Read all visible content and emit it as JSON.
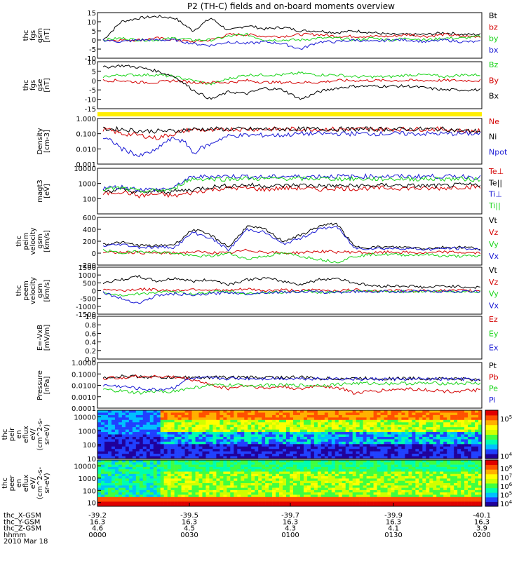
{
  "title": "P2 (TH-C) fields and on-board moments overview",
  "colors": {
    "black": "#000000",
    "red": "#d40000",
    "green": "#18d418",
    "blue": "#1818d4",
    "yellow": "#ffee00"
  },
  "chart_data": [
    {
      "type": "line",
      "ylabel": [
        "thc",
        "fgs",
        "gsm",
        "[nT]"
      ],
      "ylim": [
        -10,
        15
      ],
      "yticks": [
        "15",
        "10",
        "5",
        "0",
        "-5",
        "-10"
      ],
      "series": [
        {
          "name": "Bt",
          "color": "black",
          "values": [
            0,
            10,
            12,
            13,
            12,
            5,
            12,
            5,
            8,
            6,
            7,
            5,
            5,
            4,
            5,
            4,
            3,
            3,
            3,
            4,
            3,
            3
          ]
        },
        {
          "name": "bz",
          "color": "red",
          "values": [
            0,
            0,
            0,
            1,
            0,
            -1,
            0,
            3,
            3,
            2,
            2,
            3,
            3,
            2,
            2,
            2,
            2,
            3,
            2,
            3,
            2,
            2
          ]
        },
        {
          "name": "by",
          "color": "green",
          "values": [
            0,
            1,
            0,
            0,
            1,
            0,
            0,
            2,
            3,
            0,
            0,
            0,
            1,
            1,
            0,
            1,
            0,
            1,
            0,
            1,
            1,
            2
          ]
        },
        {
          "name": "bx",
          "color": "blue",
          "values": [
            0,
            -1,
            0,
            0,
            0,
            -2,
            -3,
            -1,
            -2,
            -1,
            -2,
            -5,
            -1,
            -1,
            0,
            -1,
            0,
            0,
            -1,
            0,
            -1,
            -1
          ]
        }
      ]
    },
    {
      "type": "line",
      "ylabel": [
        "thc",
        "fgs",
        "gse",
        "[nT]"
      ],
      "ylim": [
        -15,
        10
      ],
      "yticks": [
        "10",
        "5",
        "0",
        "-5",
        "-10",
        "-15"
      ],
      "series": [
        {
          "name": "Bz",
          "color": "green",
          "values": [
            2,
            3,
            3,
            3,
            2,
            0,
            -2,
            1,
            3,
            3,
            3,
            4,
            3,
            3,
            2,
            2,
            2,
            3,
            3,
            2,
            3,
            3
          ]
        },
        {
          "name": "By",
          "color": "red",
          "values": [
            0,
            0,
            -1,
            -1,
            0,
            -1,
            -1,
            -1,
            0,
            -1,
            -1,
            -1,
            -1,
            0,
            0,
            0,
            0,
            0,
            0,
            0,
            0,
            0
          ]
        },
        {
          "name": "Bx",
          "color": "black",
          "values": [
            7,
            8,
            7,
            5,
            2,
            -5,
            -10,
            -6,
            -7,
            -4,
            -5,
            -10,
            -6,
            -4,
            -3,
            -3,
            -3,
            -3,
            -4,
            -5,
            -5,
            -5
          ]
        }
      ]
    },
    {
      "type": "line",
      "ylabel": [
        "Density",
        "[cm-3]"
      ],
      "yscale": "log",
      "ylim": [
        0.001,
        1.0
      ],
      "yticks": [
        "1.000",
        "0.100",
        "0.010",
        "0.001"
      ],
      "series": [
        {
          "name": "Ne",
          "color": "red",
          "values": [
            0.2,
            0.1,
            0.08,
            0.05,
            0.1,
            0.2,
            0.15,
            0.2,
            0.2,
            0.2,
            0.2,
            0.2,
            0.2,
            0.2,
            0.2,
            0.2,
            0.2,
            0.2,
            0.2,
            0.2,
            0.15,
            0.15
          ]
        },
        {
          "name": "Ni",
          "color": "black",
          "values": [
            0.2,
            0.2,
            0.15,
            0.15,
            0.15,
            0.2,
            0.2,
            0.2,
            0.2,
            0.2,
            0.2,
            0.2,
            0.2,
            0.2,
            0.2,
            0.2,
            0.2,
            0.2,
            0.2,
            0.2,
            0.15,
            0.15
          ]
        },
        {
          "name": "Npot",
          "color": "blue",
          "values": [
            0.05,
            0.01,
            0.003,
            0.008,
            0.05,
            0.004,
            0.02,
            0.07,
            0.08,
            0.08,
            0.08,
            0.1,
            0.1,
            0.1,
            0.1,
            0.1,
            0.1,
            0.1,
            0.1,
            0.1,
            0.1,
            0.1
          ]
        }
      ]
    },
    {
      "type": "line",
      "ylabel": [
        "magt3",
        "[eV]"
      ],
      "yscale": "log",
      "ylim": [
        10,
        10000
      ],
      "yticks": [
        "10000",
        "1000",
        "100"
      ],
      "series": [
        {
          "name": "Te⊥",
          "color": "red",
          "values": [
            200,
            300,
            150,
            200,
            150,
            250,
            400,
            500,
            500,
            400,
            500,
            500,
            400,
            500,
            450,
            500,
            500,
            500,
            450,
            500,
            600,
            600
          ]
        },
        {
          "name": "Te||",
          "color": "black",
          "values": [
            300,
            400,
            250,
            300,
            300,
            400,
            600,
            700,
            800,
            700,
            700,
            800,
            700,
            700,
            700,
            700,
            800,
            700,
            700,
            700,
            800,
            800
          ]
        },
        {
          "name": "Ti⊥",
          "color": "blue",
          "values": [
            500,
            600,
            400,
            400,
            500,
            2500,
            3000,
            3000,
            3000,
            2500,
            3000,
            2800,
            3000,
            3000,
            2800,
            3000,
            3000,
            2800,
            3000,
            2800,
            3000,
            2500
          ]
        },
        {
          "name": "Ti||",
          "color": "green",
          "values": [
            400,
            500,
            300,
            350,
            400,
            2000,
            2000,
            2000,
            2200,
            2000,
            2200,
            2000,
            2200,
            2000,
            2000,
            2000,
            2000,
            2000,
            2000,
            2000,
            2000,
            1800
          ]
        }
      ]
    },
    {
      "type": "line",
      "ylabel": [
        "thc",
        "peim",
        "velocity",
        "gsm",
        "[km/s]"
      ],
      "ylim": [
        -200,
        600
      ],
      "yticks": [
        "600",
        "400",
        "200",
        "0",
        "-200"
      ],
      "series": [
        {
          "name": "Vt",
          "color": "black",
          "values": [
            150,
            180,
            130,
            120,
            150,
            400,
            300,
            100,
            450,
            400,
            200,
            300,
            450,
            500,
            100,
            100,
            100,
            100,
            80,
            100,
            100,
            80
          ]
        },
        {
          "name": "Vz",
          "color": "red",
          "values": [
            0,
            20,
            10,
            0,
            0,
            20,
            10,
            0,
            50,
            20,
            0,
            10,
            30,
            20,
            20,
            0,
            20,
            10,
            0,
            20,
            10,
            0
          ]
        },
        {
          "name": "Vy",
          "color": "green",
          "values": [
            50,
            0,
            30,
            20,
            0,
            -50,
            -50,
            0,
            -100,
            -50,
            0,
            -50,
            -100,
            -150,
            -50,
            -20,
            -20,
            -30,
            -20,
            -50,
            -50,
            -50
          ]
        },
        {
          "name": "Vx",
          "color": "blue",
          "values": [
            120,
            150,
            100,
            100,
            100,
            350,
            250,
            50,
            400,
            350,
            150,
            250,
            400,
            450,
            80,
            80,
            80,
            80,
            60,
            80,
            80,
            60
          ]
        }
      ]
    },
    {
      "type": "line",
      "ylabel": [
        "thc",
        "peem",
        "velocity",
        "gsm",
        "[km/s]"
      ],
      "ylim": [
        -1500,
        1500
      ],
      "yticks": [
        "1500",
        "1000",
        "500",
        "0",
        "-500",
        "-1000",
        "-1500"
      ],
      "series": [
        {
          "name": "Vt",
          "color": "black",
          "values": [
            500,
            700,
            900,
            600,
            800,
            600,
            700,
            400,
            700,
            800,
            600,
            400,
            700,
            800,
            500,
            300,
            300,
            300,
            200,
            300,
            250,
            200
          ]
        },
        {
          "name": "Vz",
          "color": "red",
          "values": [
            100,
            0,
            100,
            50,
            0,
            100,
            50,
            0,
            100,
            0,
            50,
            0,
            50,
            0,
            50,
            0,
            0,
            0,
            0,
            0,
            0,
            0
          ]
        },
        {
          "name": "Vy",
          "color": "green",
          "values": [
            -100,
            -300,
            -200,
            -100,
            -100,
            -200,
            -100,
            -50,
            -200,
            -100,
            -100,
            -50,
            -100,
            -100,
            -50,
            -50,
            -50,
            -50,
            -50,
            -50,
            -50,
            -50
          ]
        },
        {
          "name": "Vx",
          "color": "blue",
          "values": [
            -100,
            -500,
            -800,
            -300,
            -200,
            -300,
            -200,
            -100,
            -200,
            -100,
            -100,
            -50,
            -100,
            -100,
            -50,
            -50,
            -50,
            -50,
            -50,
            -50,
            -50,
            -50
          ]
        }
      ]
    },
    {
      "type": "line",
      "ylabel": [
        "E=-VxB",
        "[mV/m]"
      ],
      "ylim": [
        0,
        1.0
      ],
      "yticks": [
        "1.0",
        "0.8",
        "0.6",
        "0.4",
        "0.2",
        "0.0"
      ],
      "series": [
        {
          "name": "Ez",
          "color": "red",
          "values": []
        },
        {
          "name": "Ey",
          "color": "green",
          "values": []
        },
        {
          "name": "Ex",
          "color": "blue",
          "values": []
        }
      ]
    },
    {
      "type": "line",
      "ylabel": [
        "Pressure",
        "[nPa]"
      ],
      "yscale": "log",
      "ylim": [
        0.0001,
        1.0
      ],
      "yticks": [
        "1.0000",
        "0.1000",
        "0.0100",
        "0.0010",
        "0.0001"
      ],
      "series": [
        {
          "name": "Pt",
          "color": "black",
          "values": [
            0.05,
            0.06,
            0.06,
            0.05,
            0.05,
            0.05,
            0.05,
            0.05,
            0.05,
            0.05,
            0.05,
            0.05,
            0.04,
            0.04,
            0.04,
            0.04,
            0.04,
            0.04,
            0.04,
            0.04,
            0.035,
            0.03
          ]
        },
        {
          "name": "Pb",
          "color": "red",
          "values": [
            0.04,
            0.05,
            0.06,
            0.06,
            0.05,
            0.03,
            0.01,
            0.005,
            0.01,
            0.005,
            0.008,
            0.004,
            0.01,
            0.006,
            0.002,
            0.003,
            0.004,
            0.005,
            0.004,
            0.003,
            0.003,
            0.004
          ]
        },
        {
          "name": "Pe",
          "color": "green",
          "values": [
            0.004,
            0.003,
            0.002,
            0.003,
            0.003,
            0.006,
            0.01,
            0.01,
            0.01,
            0.01,
            0.01,
            0.01,
            0.01,
            0.012,
            0.015,
            0.015,
            0.015,
            0.015,
            0.015,
            0.015,
            0.015,
            0.015
          ]
        },
        {
          "name": "Pi",
          "color": "blue",
          "values": [
            0.01,
            0.008,
            0.005,
            0.004,
            0.006,
            0.04,
            0.04,
            0.04,
            0.04,
            0.04,
            0.04,
            0.04,
            0.04,
            0.04,
            0.035,
            0.035,
            0.035,
            0.035,
            0.035,
            0.035,
            0.035,
            0.03
          ]
        }
      ]
    },
    {
      "type": "heatmap",
      "ylabel": [
        "thc",
        "peir",
        "en",
        "eflux",
        "eV/",
        "(cm^2-s-",
        "sr-eV)"
      ],
      "yscale": "log",
      "ylim": [
        10,
        30000
      ],
      "yticks": [
        "10000",
        "1000",
        "100",
        "10"
      ],
      "colorbar_ticks": [
        "10^5",
        "10^4"
      ]
    },
    {
      "type": "heatmap",
      "ylabel": [
        "thc",
        "peer",
        "en",
        "eflux",
        "eV/",
        "(cm^2-s-",
        "sr-eV)"
      ],
      "yscale": "log",
      "ylim": [
        5,
        30000
      ],
      "yticks": [
        "10000",
        "1000",
        "100",
        "10"
      ],
      "colorbar_ticks": [
        "10^8",
        "10^7",
        "10^6",
        "10^5",
        "10^4"
      ]
    }
  ],
  "xaxis": {
    "rows": [
      {
        "label": "thc_X-GSM",
        "values": [
          "-39.2",
          "-39.5",
          "-39.7",
          "-39.9",
          "-40.1"
        ]
      },
      {
        "label": "thc_Y-GSM",
        "values": [
          "16.3",
          "16.3",
          "16.3",
          "16.3",
          "16.3"
        ]
      },
      {
        "label": "thc_Z-GSM",
        "values": [
          "4.6",
          "4.5",
          "4.3",
          "4.1",
          "3.9"
        ]
      },
      {
        "label": "hhmm",
        "values": [
          "0000",
          "0030",
          "0100",
          "0130",
          "0200"
        ]
      }
    ],
    "date": "2010 Mar 18"
  }
}
